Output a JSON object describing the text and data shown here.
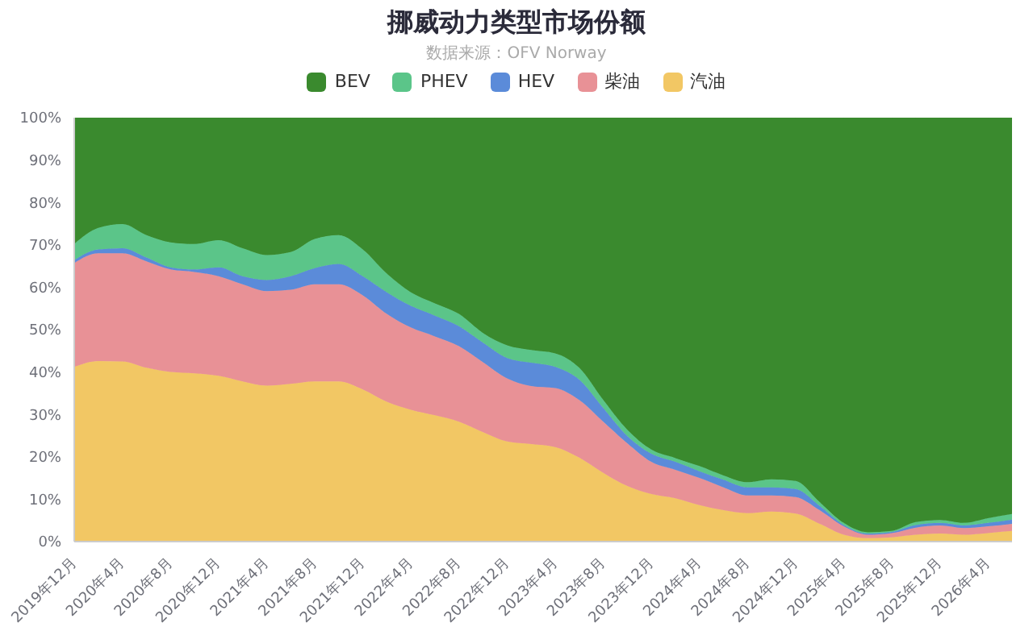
{
  "chart_data": {
    "type": "area",
    "title": "挪威动力类型市场份额",
    "subtitle": "数据来源：OFV Norway",
    "stacked": true,
    "legend": "top",
    "grid": false,
    "categories": [
      "2019年12月",
      null,
      "2020年4月",
      null,
      "2020年8月",
      null,
      "2020年12月",
      null,
      "2021年4月",
      null,
      "2021年8月",
      null,
      "2021年12月",
      null,
      "2022年4月",
      null,
      "2022年8月",
      null,
      "2022年12月",
      null,
      "2023年4月",
      null,
      "2023年8月",
      null,
      "2023年12月",
      null,
      "2024年4月",
      null,
      "2024年8月",
      null,
      "2024年12月",
      null,
      "2025年4月",
      null,
      "2025年8月",
      null,
      "2025年12月",
      null,
      "2026年4月",
      null
    ],
    "ylim": [
      0,
      100
    ],
    "yticks": [
      {
        "value": 0,
        "label": "0%"
      },
      {
        "value": 10,
        "label": "10%"
      },
      {
        "value": 20,
        "label": "20%"
      },
      {
        "value": 30,
        "label": "30%"
      },
      {
        "value": 40,
        "label": "40%"
      },
      {
        "value": 50,
        "label": "50%"
      },
      {
        "value": 60,
        "label": "60%"
      },
      {
        "value": 70,
        "label": "70%"
      },
      {
        "value": 80,
        "label": "80%"
      },
      {
        "value": 90,
        "label": "90%"
      },
      {
        "value": 100,
        "label": "100%"
      }
    ],
    "series": [
      {
        "name": "汽油",
        "color": "#f2c764",
        "values": [
          41.2,
          42.6,
          42.5,
          41.0,
          40.0,
          39.7,
          39.1,
          37.8,
          36.8,
          37.2,
          37.8,
          37.8,
          35.9,
          33.0,
          31.1,
          29.8,
          28.3,
          25.8,
          23.6,
          23.0,
          22.3,
          19.8,
          16.2,
          13.1,
          11.2,
          10.2,
          8.6,
          7.4,
          6.7,
          7.1,
          6.6,
          4.2,
          1.6,
          0.8,
          1.0,
          1.6,
          1.9,
          1.6,
          2.0,
          2.5
        ]
      },
      {
        "name": "柴油",
        "color": "#e89196",
        "values": [
          24.5,
          25.4,
          25.5,
          25.1,
          24.2,
          23.9,
          23.5,
          22.9,
          22.3,
          22.2,
          22.9,
          22.9,
          22.2,
          20.7,
          19.4,
          18.6,
          17.8,
          16.5,
          14.9,
          13.7,
          13.9,
          13.6,
          12.1,
          10.1,
          7.6,
          6.7,
          6.4,
          5.4,
          4.2,
          3.8,
          3.9,
          3.2,
          2.0,
          0.8,
          1.0,
          1.7,
          1.9,
          1.6,
          1.6,
          1.7
        ]
      },
      {
        "name": "HEV",
        "color": "#5b8bd9",
        "values": [
          0.7,
          0.9,
          1.2,
          0.9,
          0.5,
          0.6,
          2.1,
          1.9,
          2.6,
          3.2,
          3.8,
          4.8,
          4.5,
          5.1,
          5.1,
          4.9,
          4.7,
          4.6,
          4.8,
          5.5,
          5.0,
          4.8,
          3.2,
          1.7,
          1.9,
          1.9,
          1.6,
          1.8,
          1.9,
          1.9,
          1.9,
          1.0,
          0.3,
          0.3,
          0.3,
          0.6,
          0.6,
          0.6,
          0.8,
          1.0
        ]
      },
      {
        "name": "PHEV",
        "color": "#5bc589",
        "values": [
          3.8,
          5.1,
          5.7,
          5.3,
          5.9,
          6.0,
          6.4,
          6.6,
          5.9,
          5.7,
          6.9,
          6.8,
          6.3,
          4.4,
          3.2,
          2.9,
          2.9,
          2.3,
          3.0,
          3.0,
          3.2,
          2.8,
          1.9,
          1.5,
          1.0,
          0.9,
          1.2,
          1.0,
          1.2,
          1.9,
          1.9,
          0.9,
          0.5,
          0.3,
          0.2,
          0.7,
          0.7,
          0.6,
          1.1,
          1.3
        ]
      },
      {
        "name": "BEV",
        "color": "#3a8a2e",
        "values": [
          29.8,
          26.0,
          25.1,
          27.7,
          29.4,
          29.8,
          28.9,
          30.8,
          32.4,
          31.7,
          28.6,
          27.7,
          31.1,
          36.8,
          41.2,
          43.8,
          46.3,
          50.8,
          53.7,
          54.8,
          55.6,
          59.0,
          66.6,
          73.6,
          78.3,
          80.3,
          82.2,
          84.4,
          86.0,
          85.3,
          85.7,
          90.7,
          95.6,
          97.8,
          97.5,
          95.4,
          94.9,
          95.6,
          94.5,
          93.5
        ]
      }
    ]
  }
}
